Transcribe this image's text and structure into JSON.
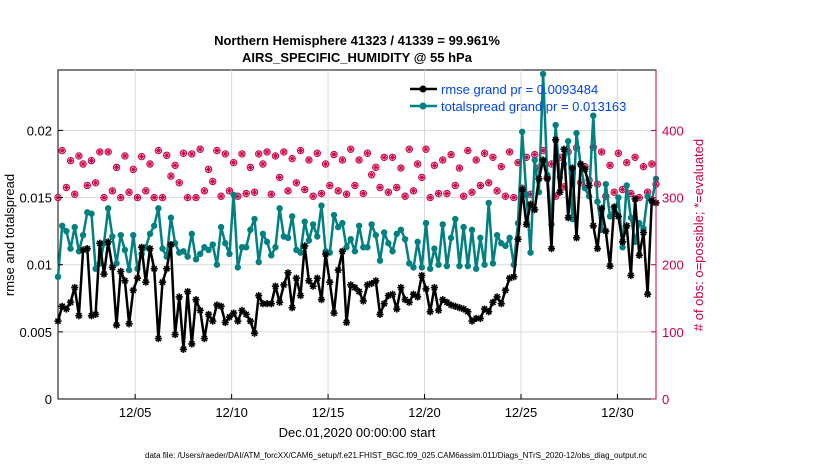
{
  "chart_data": {
    "type": "line",
    "title": "Northern Hemisphere 41323 / 41339 = 99.961%",
    "subtitle": "AIRS_SPECIFIC_HUMIDITY @ 55 hPa",
    "xlabel": "Dec.01,2020 00:00:00 start",
    "ylabel": "rmse and totalspread",
    "ylabel_right": "# of obs: o=possible; *=evaluated",
    "footer": "data file: /Users/raeder/DAI/ATM_forcXX/CAM6_setup/f.e21.FHIST_BGC.f09_025.CAM6assim.011/Diags_NTrS_2020-12/obs_diag_output.nc",
    "xlim": [
      1,
      32
    ],
    "ylim": [
      0,
      0.0245
    ],
    "ylim_right": [
      0,
      490
    ],
    "x_ticks": [
      5,
      10,
      15,
      20,
      25,
      30
    ],
    "x_tick_labels": [
      "12/05",
      "12/10",
      "12/15",
      "12/20",
      "12/25",
      "12/30"
    ],
    "y_ticks": [
      0,
      0.005,
      0.01,
      0.015,
      0.02
    ],
    "y_tick_labels": [
      "0",
      "0.005",
      "0.01",
      "0.015",
      "0.02"
    ],
    "y_ticks_right": [
      0,
      100,
      200,
      300,
      400
    ],
    "y_tick_labels_right": [
      "0",
      "100",
      "200",
      "300",
      "400"
    ],
    "legend_position": "top-right",
    "colors": {
      "rmse": "#000000",
      "spread": "#008080",
      "obs": "#cc0044"
    },
    "series": [
      {
        "name": "rmse grand pr = 0.0093484",
        "key": "rmse",
        "values": [
          0.0058,
          0.0069,
          0.0067,
          0.0072,
          0.0083,
          0.0062,
          0.0111,
          0.0112,
          0.0062,
          0.0063,
          0.0116,
          0.0093,
          0.0117,
          0.0098,
          0.0055,
          0.0095,
          0.0088,
          0.0056,
          0.0081,
          0.009,
          0.0113,
          0.0087,
          0.0112,
          0.0097,
          0.0045,
          0.0087,
          0.0097,
          0.0115,
          0.0048,
          0.0076,
          0.0037,
          0.008,
          0.0041,
          0.0074,
          0.0066,
          0.0045,
          0.0063,
          0.0058,
          0.007,
          0.0069,
          0.0057,
          0.0061,
          0.0064,
          0.0058,
          0.0066,
          0.0063,
          0.0058,
          0.0049,
          0.0077,
          0.0071,
          0.0071,
          0.0071,
          0.0084,
          0.0072,
          0.0085,
          0.0094,
          0.0068,
          0.009,
          0.0077,
          0.0114,
          0.0088,
          0.0084,
          0.009,
          0.0074,
          0.0108,
          0.0087,
          0.0064,
          0.0096,
          0.011,
          0.0057,
          0.0085,
          0.0083,
          0.008,
          0.0073,
          0.0085,
          0.0086,
          0.0088,
          0.0063,
          0.0071,
          0.0077,
          0.0078,
          0.0067,
          0.0083,
          0.0074,
          0.0072,
          0.0078,
          0.0076,
          0.0092,
          0.0082,
          0.0065,
          0.0083,
          0.0066,
          0.0074,
          0.0072,
          0.007,
          0.0069,
          0.0068,
          0.0067,
          0.0065,
          0.0058,
          0.006,
          0.006,
          0.0067,
          0.0065,
          0.0072,
          0.0076,
          0.0071,
          0.0081,
          0.009,
          0.0091,
          0.0119,
          0.0156,
          0.013,
          0.0145,
          0.0141,
          0.0164,
          0.0178,
          0.0164,
          0.0112,
          0.0193,
          0.0154,
          0.0186,
          0.0135,
          0.0172,
          0.012,
          0.0175,
          0.0171,
          0.0159,
          0.0129,
          0.0112,
          0.0142,
          0.0125,
          0.0099,
          0.0143,
          0.0136,
          0.0117,
          0.0129,
          0.0092,
          0.0149,
          0.0107,
          0.0124,
          0.0078,
          0.0148,
          0.0146
        ]
      },
      {
        "name": "totalspread grand pr = 0.013163",
        "key": "spread",
        "values": [
          0.0091,
          0.0129,
          0.0125,
          0.0112,
          0.0128,
          0.011,
          0.0122,
          0.0139,
          0.0138,
          0.0097,
          0.0101,
          0.0116,
          0.0142,
          0.0121,
          0.0101,
          0.0122,
          0.0111,
          0.0096,
          0.0122,
          0.0097,
          0.0108,
          0.0113,
          0.0123,
          0.0129,
          0.0142,
          0.0112,
          0.0106,
          0.0135,
          0.0116,
          0.0109,
          0.011,
          0.0106,
          0.0123,
          0.0104,
          0.0108,
          0.0113,
          0.0111,
          0.0115,
          0.01,
          0.0128,
          0.0116,
          0.0108,
          0.0152,
          0.0098,
          0.0113,
          0.0113,
          0.0126,
          0.0134,
          0.0102,
          0.0123,
          0.0117,
          0.0107,
          0.0113,
          0.0142,
          0.0121,
          0.012,
          0.0136,
          0.0111,
          0.0109,
          0.0132,
          0.0118,
          0.013,
          0.0121,
          0.0144,
          0.011,
          0.0109,
          0.0137,
          0.0128,
          0.0131,
          0.0113,
          0.0119,
          0.011,
          0.0129,
          0.0113,
          0.0113,
          0.013,
          0.0122,
          0.0103,
          0.0124,
          0.0116,
          0.011,
          0.0123,
          0.0126,
          0.0119,
          0.0101,
          0.0098,
          0.0117,
          0.0098,
          0.0131,
          0.0097,
          0.0112,
          0.01,
          0.013,
          0.0099,
          0.012,
          0.0134,
          0.0099,
          0.0128,
          0.0099,
          0.0126,
          0.0097,
          0.012,
          0.01,
          0.0146,
          0.0101,
          0.0122,
          0.0116,
          0.0114,
          0.012,
          0.01,
          0.0131,
          0.0199,
          0.0152,
          0.0109,
          0.0178,
          0.0154,
          0.0242,
          0.0167,
          0.013,
          0.0204,
          0.0165,
          0.0175,
          0.0192,
          0.0134,
          0.0198,
          0.0174,
          0.0157,
          0.0151,
          0.0211,
          0.0147,
          0.0126,
          0.016,
          0.0136,
          0.0139,
          0.015,
          0.0113,
          0.0159,
          0.0135,
          0.0117,
          0.0131,
          0.0127,
          0.0151,
          0.0147,
          0.0164
        ]
      }
    ],
    "obs_possible": [
      300,
      370,
      315,
      355,
      305,
      362,
      350,
      318,
      355,
      322,
      368,
      300,
      368,
      310,
      345,
      300,
      362,
      308,
      342,
      300,
      361,
      310,
      350,
      300,
      370,
      300,
      363,
      332,
      348,
      322,
      366,
      300,
      365,
      300,
      372,
      310,
      342,
      324,
      370,
      302,
      365,
      310,
      352,
      302,
      365,
      306,
      345,
      308,
      365,
      350,
      368,
      305,
      362,
      330,
      368,
      310,
      358,
      322,
      370,
      312,
      356,
      302,
      366,
      306,
      350,
      318,
      364,
      310,
      356,
      305,
      372,
      318,
      356,
      306,
      366,
      334,
      345,
      315,
      360,
      308,
      360,
      315,
      344,
      302,
      372,
      310,
      350,
      330,
      372,
      300,
      348,
      306,
      356,
      306,
      364,
      318,
      344,
      302,
      370,
      308,
      356,
      318,
      366,
      322,
      360,
      310,
      346,
      302,
      368,
      300,
      352,
      314,
      360,
      305,
      364,
      344,
      370,
      330,
      350,
      302,
      360,
      316,
      368,
      336,
      374,
      322,
      346,
      326,
      375,
      320,
      368,
      302,
      348,
      308,
      366,
      312,
      352,
      306,
      360,
      300,
      346,
      308,
      350,
      320
    ],
    "obs_evaluated": [
      300,
      370,
      315,
      355,
      305,
      362,
      350,
      318,
      355,
      322,
      368,
      300,
      368,
      310,
      345,
      300,
      362,
      308,
      342,
      300,
      361,
      310,
      350,
      300,
      370,
      300,
      363,
      332,
      348,
      322,
      366,
      300,
      365,
      300,
      372,
      310,
      342,
      324,
      370,
      302,
      365,
      310,
      352,
      302,
      365,
      306,
      345,
      308,
      365,
      350,
      368,
      305,
      362,
      330,
      368,
      310,
      358,
      322,
      370,
      312,
      356,
      302,
      366,
      306,
      350,
      318,
      364,
      310,
      356,
      305,
      372,
      318,
      356,
      306,
      366,
      334,
      345,
      315,
      360,
      308,
      360,
      315,
      344,
      302,
      372,
      310,
      350,
      330,
      372,
      300,
      348,
      306,
      356,
      306,
      364,
      318,
      344,
      302,
      370,
      308,
      356,
      318,
      366,
      322,
      360,
      310,
      346,
      302,
      368,
      300,
      352,
      314,
      360,
      305,
      364,
      344,
      370,
      330,
      350,
      302,
      360,
      316,
      368,
      336,
      374,
      322,
      346,
      326,
      375,
      320,
      368,
      302,
      348,
      308,
      366,
      312,
      352,
      306,
      360,
      300,
      346,
      308,
      350,
      320
    ]
  }
}
